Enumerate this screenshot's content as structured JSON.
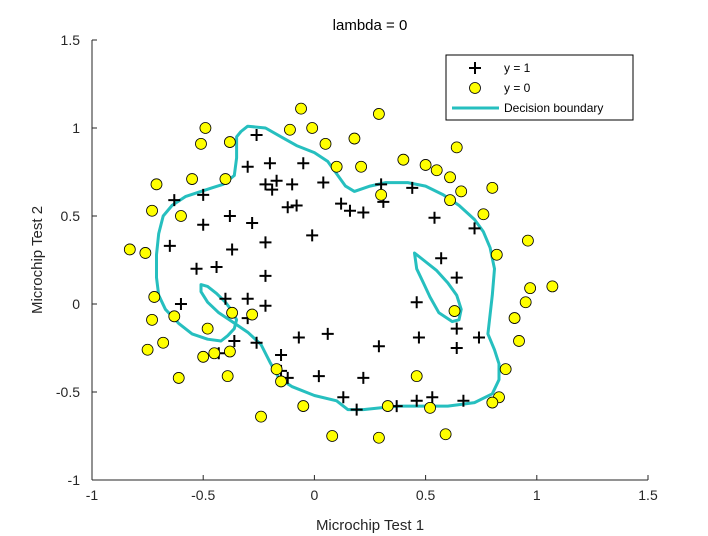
{
  "chart_data": {
    "type": "scatter",
    "title": "lambda = 0",
    "xlabel": "Microchip Test 1",
    "ylabel": "Microchip Test 2",
    "xlim": [
      -1,
      1.5
    ],
    "ylim": [
      -1,
      1.5
    ],
    "xticks": [
      "-1",
      "-0.5",
      "0",
      "0.5",
      "1",
      "1.5"
    ],
    "yticks": [
      "-1",
      "-0.5",
      "0",
      "0.5",
      "1",
      "1.5"
    ],
    "grid": false,
    "legend_position": "top-right",
    "legend": [
      {
        "label": "y = 1",
        "marker": "plus",
        "color": "#000000"
      },
      {
        "label": "y = 0",
        "marker": "circle",
        "color": "#ffff00"
      },
      {
        "label": "Decision boundary",
        "marker": "line",
        "color": "#26bfbf"
      }
    ],
    "series": [
      {
        "name": "y = 1",
        "marker": "plus",
        "color": "#000000",
        "points": [
          [
            -0.26,
            0.96
          ],
          [
            -0.3,
            0.78
          ],
          [
            -0.2,
            0.8
          ],
          [
            -0.17,
            0.7
          ],
          [
            -0.22,
            0.68
          ],
          [
            -0.1,
            0.68
          ],
          [
            -0.19,
            0.65
          ],
          [
            -0.05,
            0.8
          ],
          [
            0.04,
            0.69
          ],
          [
            -0.08,
            0.56
          ],
          [
            -0.12,
            0.55
          ],
          [
            0.12,
            0.57
          ],
          [
            0.16,
            0.53
          ],
          [
            0.22,
            0.52
          ],
          [
            0.3,
            0.68
          ],
          [
            0.31,
            0.58
          ],
          [
            0.44,
            0.66
          ],
          [
            0.54,
            0.49
          ],
          [
            0.72,
            0.43
          ],
          [
            -0.5,
            0.62
          ],
          [
            -0.63,
            0.59
          ],
          [
            -0.38,
            0.5
          ],
          [
            -0.28,
            0.46
          ],
          [
            -0.5,
            0.45
          ],
          [
            -0.65,
            0.33
          ],
          [
            -0.37,
            0.31
          ],
          [
            -0.22,
            0.35
          ],
          [
            -0.01,
            0.39
          ],
          [
            -0.53,
            0.2
          ],
          [
            -0.44,
            0.21
          ],
          [
            -0.22,
            0.16
          ],
          [
            -0.6,
            0.0
          ],
          [
            -0.4,
            0.03
          ],
          [
            -0.3,
            0.03
          ],
          [
            -0.22,
            -0.01
          ],
          [
            -0.3,
            -0.08
          ],
          [
            0.57,
            0.26
          ],
          [
            0.64,
            0.15
          ],
          [
            0.46,
            0.01
          ],
          [
            0.64,
            -0.14
          ],
          [
            0.64,
            -0.25
          ],
          [
            0.74,
            -0.19
          ],
          [
            0.47,
            -0.19
          ],
          [
            0.06,
            -0.17
          ],
          [
            -0.07,
            -0.19
          ],
          [
            -0.36,
            -0.21
          ],
          [
            -0.26,
            -0.22
          ],
          [
            -0.43,
            -0.28
          ],
          [
            -0.15,
            -0.29
          ],
          [
            -0.15,
            -0.38
          ],
          [
            -0.12,
            -0.42
          ],
          [
            0.02,
            -0.41
          ],
          [
            0.22,
            -0.42
          ],
          [
            0.29,
            -0.24
          ],
          [
            0.13,
            -0.53
          ],
          [
            0.19,
            -0.6
          ],
          [
            0.37,
            -0.58
          ],
          [
            0.46,
            -0.55
          ],
          [
            0.53,
            -0.53
          ],
          [
            0.67,
            -0.55
          ]
        ]
      },
      {
        "name": "y = 0",
        "marker": "circle",
        "color": "#ffff00",
        "points": [
          [
            -0.83,
            0.31
          ],
          [
            -0.76,
            0.29
          ],
          [
            -0.73,
            0.53
          ],
          [
            -0.71,
            0.68
          ],
          [
            -0.6,
            0.5
          ],
          [
            -0.55,
            0.71
          ],
          [
            -0.51,
            0.91
          ],
          [
            -0.49,
            1.0
          ],
          [
            -0.4,
            0.71
          ],
          [
            -0.38,
            0.92
          ],
          [
            -0.11,
            0.99
          ],
          [
            -0.06,
            1.11
          ],
          [
            -0.01,
            1.0
          ],
          [
            0.05,
            0.91
          ],
          [
            0.1,
            0.78
          ],
          [
            0.18,
            0.94
          ],
          [
            0.21,
            0.78
          ],
          [
            0.29,
            1.08
          ],
          [
            0.3,
            0.62
          ],
          [
            0.4,
            0.82
          ],
          [
            0.5,
            0.79
          ],
          [
            0.55,
            0.76
          ],
          [
            0.61,
            0.72
          ],
          [
            0.64,
            0.89
          ],
          [
            0.66,
            0.64
          ],
          [
            0.61,
            0.59
          ],
          [
            0.76,
            0.51
          ],
          [
            0.8,
            0.66
          ],
          [
            0.82,
            0.28
          ],
          [
            0.96,
            0.36
          ],
          [
            1.07,
            0.1
          ],
          [
            0.97,
            0.09
          ],
          [
            0.95,
            0.01
          ],
          [
            0.9,
            -0.08
          ],
          [
            0.92,
            -0.21
          ],
          [
            0.86,
            -0.37
          ],
          [
            0.83,
            -0.53
          ],
          [
            0.8,
            -0.56
          ],
          [
            0.59,
            -0.74
          ],
          [
            0.52,
            -0.59
          ],
          [
            0.46,
            -0.41
          ],
          [
            0.33,
            -0.58
          ],
          [
            0.29,
            -0.76
          ],
          [
            0.08,
            -0.75
          ],
          [
            -0.05,
            -0.58
          ],
          [
            -0.24,
            -0.64
          ],
          [
            -0.15,
            -0.44
          ],
          [
            -0.17,
            -0.37
          ],
          [
            -0.39,
            -0.41
          ],
          [
            -0.45,
            -0.28
          ],
          [
            -0.5,
            -0.3
          ],
          [
            -0.38,
            -0.27
          ],
          [
            -0.48,
            -0.14
          ],
          [
            -0.37,
            -0.05
          ],
          [
            -0.28,
            -0.06
          ],
          [
            -0.63,
            -0.07
          ],
          [
            -0.72,
            0.04
          ],
          [
            -0.73,
            -0.09
          ],
          [
            -0.68,
            -0.22
          ],
          [
            -0.75,
            -0.26
          ],
          [
            -0.61,
            -0.42
          ],
          [
            0.63,
            -0.04
          ]
        ]
      }
    ],
    "decision_boundary": {
      "name": "Decision boundary",
      "color": "#26bfbf",
      "loops": [
        [
          [
            -0.35,
            0.95
          ],
          [
            -0.33,
            0.98
          ],
          [
            -0.3,
            1.01
          ],
          [
            -0.22,
            1.0
          ],
          [
            -0.15,
            0.95
          ],
          [
            -0.08,
            0.9
          ],
          [
            0.0,
            0.86
          ],
          [
            0.06,
            0.81
          ],
          [
            0.1,
            0.74
          ],
          [
            0.14,
            0.67
          ],
          [
            0.18,
            0.64
          ],
          [
            0.25,
            0.67
          ],
          [
            0.32,
            0.69
          ],
          [
            0.42,
            0.69
          ],
          [
            0.5,
            0.67
          ],
          [
            0.58,
            0.62
          ],
          [
            0.65,
            0.56
          ],
          [
            0.72,
            0.48
          ],
          [
            0.76,
            0.41
          ],
          [
            0.79,
            0.32
          ],
          [
            0.81,
            0.2
          ],
          [
            0.8,
            0.05
          ],
          [
            0.79,
            -0.06
          ],
          [
            0.78,
            -0.17
          ],
          [
            0.81,
            -0.26
          ],
          [
            0.83,
            -0.34
          ],
          [
            0.83,
            -0.43
          ],
          [
            0.8,
            -0.51
          ],
          [
            0.72,
            -0.56
          ],
          [
            0.6,
            -0.58
          ],
          [
            0.48,
            -0.58
          ],
          [
            0.38,
            -0.58
          ],
          [
            0.3,
            -0.59
          ],
          [
            0.22,
            -0.6
          ],
          [
            0.15,
            -0.6
          ],
          [
            0.1,
            -0.55
          ],
          [
            0.0,
            -0.52
          ],
          [
            -0.1,
            -0.47
          ],
          [
            -0.16,
            -0.42
          ],
          [
            -0.2,
            -0.33
          ],
          [
            -0.24,
            -0.23
          ],
          [
            -0.3,
            -0.16
          ],
          [
            -0.37,
            -0.1
          ],
          [
            -0.43,
            -0.05
          ],
          [
            -0.48,
            0.01
          ],
          [
            -0.51,
            0.07
          ],
          [
            -0.51,
            0.11
          ],
          [
            -0.48,
            0.1
          ],
          [
            -0.44,
            0.06
          ],
          [
            -0.4,
            0.01
          ],
          [
            -0.37,
            -0.04
          ],
          [
            -0.35,
            -0.09
          ],
          [
            -0.36,
            -0.14
          ],
          [
            -0.39,
            -0.18
          ],
          [
            -0.42,
            -0.21
          ],
          [
            -0.48,
            -0.2
          ],
          [
            -0.55,
            -0.17
          ],
          [
            -0.61,
            -0.11
          ],
          [
            -0.67,
            -0.03
          ],
          [
            -0.7,
            0.05
          ],
          [
            -0.71,
            0.15
          ],
          [
            -0.71,
            0.28
          ],
          [
            -0.7,
            0.4
          ],
          [
            -0.68,
            0.5
          ],
          [
            -0.64,
            0.56
          ],
          [
            -0.58,
            0.61
          ],
          [
            -0.51,
            0.64
          ],
          [
            -0.46,
            0.66
          ],
          [
            -0.41,
            0.68
          ],
          [
            -0.36,
            0.73
          ],
          [
            -0.35,
            0.83
          ],
          [
            -0.35,
            0.91
          ],
          [
            -0.35,
            0.95
          ]
        ],
        [
          [
            0.45,
            0.29
          ],
          [
            0.49,
            0.25
          ],
          [
            0.55,
            0.19
          ],
          [
            0.6,
            0.12
          ],
          [
            0.64,
            0.05
          ],
          [
            0.66,
            -0.03
          ],
          [
            0.65,
            -0.09
          ],
          [
            0.62,
            -0.1
          ],
          [
            0.56,
            -0.05
          ],
          [
            0.52,
            0.04
          ],
          [
            0.49,
            0.12
          ],
          [
            0.46,
            0.2
          ],
          [
            0.45,
            0.29
          ]
        ]
      ]
    }
  }
}
